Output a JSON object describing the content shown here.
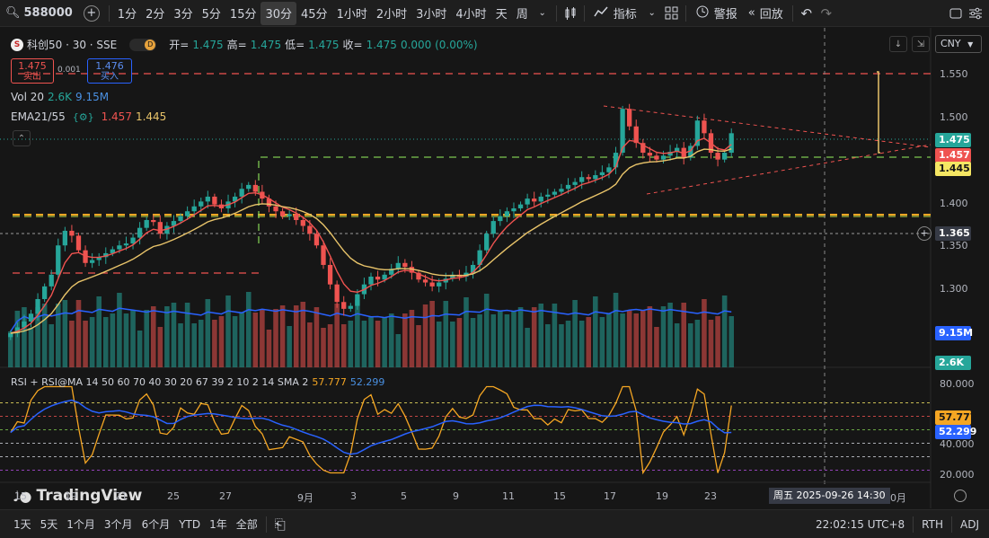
{
  "toolbar": {
    "symbol": "588000",
    "intervals": [
      "1分",
      "2分",
      "3分",
      "5分",
      "15分",
      "30分",
      "45分",
      "1小时",
      "2小时",
      "3小时",
      "4小时",
      "天",
      "周"
    ],
    "active_interval": "30分",
    "indicators_label": "指标",
    "alert_label": "警报",
    "replay_label": "回放"
  },
  "legend": {
    "title": "科创50 · 30 · SSE",
    "badge": "D",
    "open_label": "开=",
    "open": "1.475",
    "high_label": "高=",
    "high": "1.475",
    "low_label": "低=",
    "low": "1.475",
    "close_label": "收=",
    "close": "1.475",
    "change": "0.000 (0.00%)",
    "sell_price": "1.475",
    "sell_label": "卖出",
    "spread": "0.001",
    "buy_price": "1.476",
    "buy_label": "买入",
    "vol_label": "Vol 20",
    "vol_val1": "2.6K",
    "vol_val2": "9.15M",
    "ema_label": "EMA21/55",
    "ema1": "1.457",
    "ema2": "1.445",
    "rsi_label": "RSI + RSI@MA 14 50 60 70 40 30 20 67 39 2 10 2 14 SMA 2",
    "rsi1": "57.777",
    "rsi2": "52.299"
  },
  "currency": "CNY",
  "price_axis": [
    "1.550",
    "1.500",
    "1.450",
    "1.400",
    "1.350",
    "1.300"
  ],
  "price_tags": {
    "last": "1.475",
    "ema21": "1.457",
    "ema55": "1.445",
    "crosshair": "1.365",
    "vol_ma": "9.15M",
    "vol": "2.6K"
  },
  "rsi_axis": [
    "80.000",
    "60.000",
    "40.000",
    "20.000"
  ],
  "rsi_tags": {
    "rsi": "57.777",
    "rsi_ma": "52.299"
  },
  "x_axis": [
    "15",
    "19",
    "21",
    "25",
    "27",
    "9月",
    "3",
    "5",
    "9",
    "11",
    "15",
    "17",
    "19",
    "23",
    "",
    "10月"
  ],
  "crosshair_date": "周五 2025-09-26   14:30",
  "watermark": "TradingView",
  "bottom": {
    "ranges": [
      "1天",
      "5天",
      "1个月",
      "3个月",
      "6个月",
      "YTD",
      "1年",
      "全部"
    ],
    "time": "22:02:15 UTC+8",
    "rth": "RTH",
    "adj": "ADJ"
  },
  "colors": {
    "up": "#26a69a",
    "down": "#ef5350",
    "ema21": "#ef5350",
    "ema55": "#e9c46a",
    "rsi": "#f5a623",
    "rsi_ma": "#2962ff"
  },
  "chart_data": {
    "type": "candlestick",
    "y_range": [
      1.27,
      1.56
    ],
    "closes": [
      1.27,
      1.276,
      1.282,
      1.29,
      1.305,
      1.318,
      1.33,
      1.36,
      1.375,
      1.37,
      1.355,
      1.342,
      1.345,
      1.348,
      1.352,
      1.356,
      1.36,
      1.362,
      1.368,
      1.378,
      1.386,
      1.384,
      1.372,
      1.38,
      1.385,
      1.39,
      1.395,
      1.4,
      1.405,
      1.41,
      1.402,
      1.398,
      1.405,
      1.41,
      1.418,
      1.422,
      1.415,
      1.408,
      1.4,
      1.395,
      1.39,
      1.392,
      1.386,
      1.38,
      1.372,
      1.36,
      1.34,
      1.32,
      1.302,
      1.295,
      1.298,
      1.31,
      1.32,
      1.328,
      1.325,
      1.33,
      1.336,
      1.342,
      1.338,
      1.332,
      1.325,
      1.322,
      1.318,
      1.322,
      1.326,
      1.33,
      1.328,
      1.332,
      1.34,
      1.355,
      1.372,
      1.385,
      1.39,
      1.395,
      1.398,
      1.402,
      1.408,
      1.405,
      1.41,
      1.412,
      1.415,
      1.418,
      1.422,
      1.425,
      1.43,
      1.428,
      1.432,
      1.435,
      1.44,
      1.455,
      1.5,
      1.482,
      1.465,
      1.455,
      1.452,
      1.448,
      1.452,
      1.456,
      1.46,
      1.45,
      1.462,
      1.488,
      1.475,
      1.455,
      1.448,
      1.455,
      1.475
    ]
  }
}
